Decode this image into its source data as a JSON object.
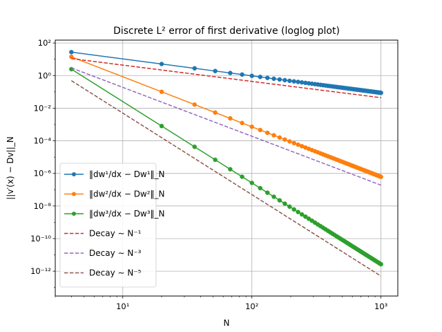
{
  "chart_data": {
    "type": "line",
    "title": "Discrete L² error of first derivative (loglog plot)",
    "xlabel": "N",
    "ylabel": "||v′(x) − Dv||_N",
    "xscale": "log",
    "yscale": "log",
    "xlim": [
      3,
      1350
    ],
    "ylim": [
      3e-14,
      150
    ],
    "grid": true,
    "legend_position": "lower-left",
    "x_tick_labels": [
      "10¹",
      "10²",
      "10³"
    ],
    "y_tick_labels": [
      "10²",
      "10⁰",
      "10⁻²",
      "10⁻⁴",
      "10⁻⁶",
      "10⁻⁸",
      "10⁻¹⁰",
      "10⁻¹²"
    ],
    "colors": {
      "blue": "#1f77b4",
      "orange": "#ff7f0e",
      "green": "#2ca02c",
      "red": "#d62728",
      "purple": "#9467bd",
      "brown": "#8c564b",
      "grid": "#b0b0b0"
    },
    "x_nodes": [
      4,
      20,
      36,
      52,
      68,
      84,
      100,
      116,
      132,
      148,
      164,
      180,
      196,
      212,
      228,
      244,
      260,
      276,
      292,
      308,
      324,
      340,
      356,
      372,
      388,
      404,
      420,
      436,
      452,
      468,
      484,
      500,
      516,
      532,
      548,
      564,
      580,
      596,
      612,
      628,
      644,
      660,
      676,
      692,
      708,
      724,
      740,
      756,
      772,
      788,
      804,
      820,
      836,
      852,
      868,
      884,
      900,
      916,
      932,
      948,
      964,
      980,
      996,
      1000
    ],
    "series": [
      {
        "name": "‖dw¹/dx − Dw¹‖_N",
        "color": "#1f77b4",
        "style": "solid-marker",
        "fit": {
          "C": 116,
          "p": 1.04
        }
      },
      {
        "name": "‖dw²/dx − Dw²‖_N",
        "color": "#ff7f0e",
        "style": "solid-marker",
        "fit": {
          "C": 1000,
          "p": 3.07
        }
      },
      {
        "name": "‖dw³/dx − Dw³‖_N",
        "color": "#2ca02c",
        "style": "solid-marker",
        "fit": {
          "C": 2500,
          "p": 4.99
        }
      },
      {
        "name": "Decay ∼ N⁻¹",
        "color": "#d62728",
        "style": "dashed",
        "fit": {
          "C": 44,
          "p": 1
        }
      },
      {
        "name": "Decay ∼ N⁻³",
        "color": "#9467bd",
        "style": "dashed",
        "fit": {
          "C": 190,
          "p": 3
        }
      },
      {
        "name": "Decay ∼ N⁻⁵",
        "color": "#8c564b",
        "style": "dashed",
        "fit": {
          "C": 500,
          "p": 5
        }
      }
    ]
  }
}
